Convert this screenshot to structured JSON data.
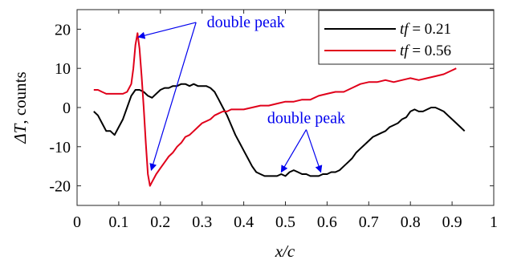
{
  "chart_data": {
    "type": "line",
    "xlabel": "x/c",
    "ylabel_math": "ΔT",
    "ylabel_suffix": ", counts",
    "xlim": [
      0,
      1
    ],
    "ylim": [
      -25,
      25
    ],
    "xticks": [
      0,
      0.1,
      0.2,
      0.3,
      0.4,
      0.5,
      0.6,
      0.7,
      0.8,
      0.9,
      1
    ],
    "xtick_labels": [
      "0",
      "0.1",
      "0.2",
      "0.3",
      "0.4",
      "0.5",
      "0.6",
      "0.7",
      "0.8",
      "0.9",
      "1"
    ],
    "yticks": [
      -20,
      -10,
      0,
      10,
      20
    ],
    "ytick_labels": [
      "-20",
      "-10",
      "0",
      "10",
      "20"
    ],
    "grid": false,
    "legend_position": "top-right",
    "series": [
      {
        "name_var": "tf",
        "name_eq": " = 0.21",
        "color": "#000000",
        "x": [
          0.04,
          0.05,
          0.06,
          0.07,
          0.08,
          0.09,
          0.1,
          0.11,
          0.12,
          0.13,
          0.14,
          0.15,
          0.16,
          0.17,
          0.18,
          0.19,
          0.2,
          0.21,
          0.22,
          0.23,
          0.24,
          0.25,
          0.26,
          0.27,
          0.28,
          0.29,
          0.3,
          0.31,
          0.32,
          0.33,
          0.34,
          0.35,
          0.36,
          0.37,
          0.38,
          0.39,
          0.4,
          0.41,
          0.42,
          0.43,
          0.44,
          0.45,
          0.46,
          0.47,
          0.48,
          0.49,
          0.5,
          0.51,
          0.52,
          0.53,
          0.54,
          0.55,
          0.56,
          0.57,
          0.58,
          0.59,
          0.6,
          0.61,
          0.62,
          0.63,
          0.64,
          0.65,
          0.66,
          0.67,
          0.68,
          0.69,
          0.7,
          0.71,
          0.72,
          0.73,
          0.74,
          0.75,
          0.76,
          0.77,
          0.78,
          0.79,
          0.8,
          0.81,
          0.82,
          0.83,
          0.84,
          0.85,
          0.86,
          0.87,
          0.88,
          0.89,
          0.9,
          0.91,
          0.92,
          0.93
        ],
        "y": [
          -1,
          -2,
          -4,
          -6,
          -6,
          -7,
          -5,
          -3,
          0,
          3,
          4.5,
          4.5,
          4,
          3,
          2.5,
          3.5,
          4.5,
          5,
          5,
          5.5,
          5.5,
          6,
          6,
          5.5,
          6,
          5.5,
          5.5,
          5.5,
          5,
          4,
          2,
          0,
          -2,
          -4.5,
          -7,
          -9,
          -11,
          -13,
          -15,
          -16.5,
          -17,
          -17.5,
          -17.5,
          -17.5,
          -17.5,
          -17,
          -17.5,
          -16.5,
          -16,
          -16.5,
          -17,
          -17,
          -17.5,
          -17.5,
          -17.5,
          -17,
          -17,
          -16.5,
          -16.5,
          -16,
          -15,
          -14,
          -13,
          -11.5,
          -10.5,
          -9.5,
          -8.5,
          -7.5,
          -7,
          -6.5,
          -6,
          -5,
          -4.5,
          -4,
          -3,
          -2.5,
          -1,
          -0.5,
          -1,
          -1,
          -0.5,
          0,
          0,
          -0.5,
          -1,
          -2,
          -3,
          -4,
          -5,
          -6
        ]
      },
      {
        "name_var": "tf",
        "name_eq": " = 0.56",
        "color": "#e0001a",
        "x": [
          0.04,
          0.05,
          0.06,
          0.07,
          0.08,
          0.09,
          0.1,
          0.11,
          0.12,
          0.13,
          0.135,
          0.14,
          0.145,
          0.15,
          0.155,
          0.16,
          0.165,
          0.17,
          0.175,
          0.18,
          0.19,
          0.2,
          0.21,
          0.22,
          0.23,
          0.24,
          0.25,
          0.26,
          0.27,
          0.28,
          0.29,
          0.3,
          0.31,
          0.32,
          0.33,
          0.34,
          0.35,
          0.36,
          0.37,
          0.38,
          0.39,
          0.4,
          0.42,
          0.44,
          0.46,
          0.48,
          0.5,
          0.52,
          0.54,
          0.56,
          0.58,
          0.6,
          0.62,
          0.64,
          0.66,
          0.68,
          0.7,
          0.72,
          0.74,
          0.76,
          0.78,
          0.8,
          0.82,
          0.84,
          0.86,
          0.88,
          0.9,
          0.91
        ],
        "y": [
          4.5,
          4.5,
          4,
          3.5,
          3.5,
          3.5,
          3.5,
          3.5,
          4,
          6,
          10,
          16,
          19,
          15,
          8,
          0,
          -9,
          -17,
          -20,
          -19,
          -17,
          -15.5,
          -14,
          -12.5,
          -11.5,
          -10,
          -9,
          -7.5,
          -7,
          -6,
          -5,
          -4,
          -3.5,
          -3,
          -2,
          -1.5,
          -1,
          -1,
          -0.5,
          -0.5,
          -0.5,
          -0.5,
          0,
          0.5,
          0.5,
          1,
          1.5,
          1.5,
          2,
          2,
          3,
          3.5,
          4,
          4,
          5,
          6,
          6.5,
          6.5,
          7,
          6.5,
          7,
          7.5,
          7,
          7.5,
          8,
          8.5,
          9.5,
          10
        ]
      }
    ],
    "annotations": [
      {
        "text": "double peak",
        "color": "#0000ee",
        "x": 0.405,
        "y": 20.5,
        "arrows_to": [
          [
            0.147,
            18
          ],
          [
            0.178,
            -16
          ]
        ]
      },
      {
        "text": "double peak",
        "color": "#0000ee",
        "x": 0.55,
        "y": -4,
        "arrows_to": [
          [
            0.49,
            -16.5
          ],
          [
            0.585,
            -16.5
          ]
        ]
      }
    ]
  }
}
